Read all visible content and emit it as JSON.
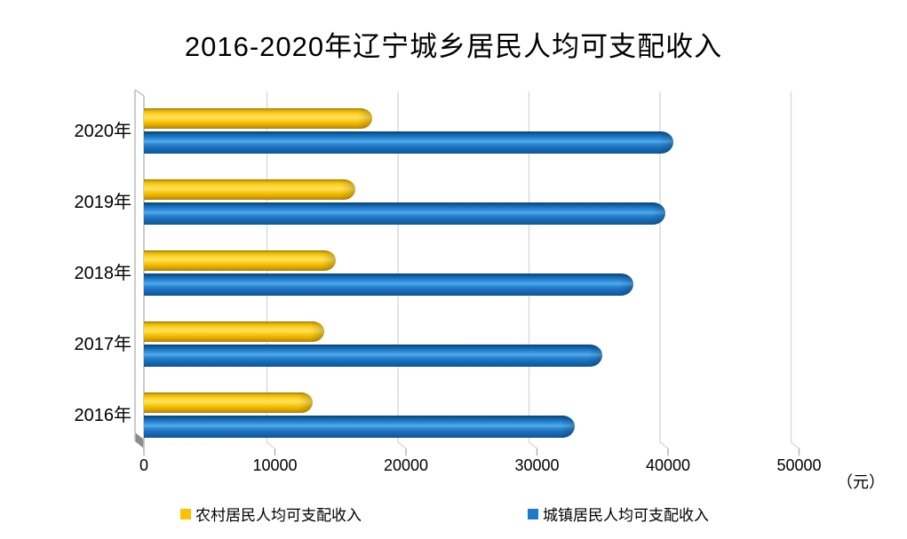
{
  "title": "2016-2020年辽宁城乡居民人均可支配收入",
  "axis": {
    "unit_label": "（元）"
  },
  "chart_data": {
    "type": "bar",
    "orientation": "horizontal",
    "bar_style": "3d-cylinder",
    "title": "2016-2020年辽宁城乡居民人均可支配收入",
    "categories": [
      "2020年",
      "2019年",
      "2018年",
      "2017年",
      "2016年"
    ],
    "series": [
      {
        "name": "农村居民人均可支配收入",
        "color": "#FFC000",
        "values": [
          17450,
          16108,
          14656,
          13747,
          12881
        ]
      },
      {
        "name": "城镇居民人均可支配收入",
        "color": "#1B7AC9",
        "values": [
          40376,
          39777,
          37342,
          34993,
          32860
        ]
      }
    ],
    "x_ticks": [
      0,
      10000,
      20000,
      30000,
      40000,
      50000
    ],
    "xlim": [
      0,
      50000
    ],
    "x_unit": "元",
    "grid": "vertical-gridlines",
    "legend_position": "bottom"
  },
  "colors": {
    "rural_bar": "#FFC000",
    "urban_bar": "#1B7AC9",
    "gridline": "#D9D9D9",
    "wall": "#C0C0C0",
    "wall_corner": "#8C8C8C",
    "tick": "#ABABAB",
    "background": "#FFFFFF"
  }
}
